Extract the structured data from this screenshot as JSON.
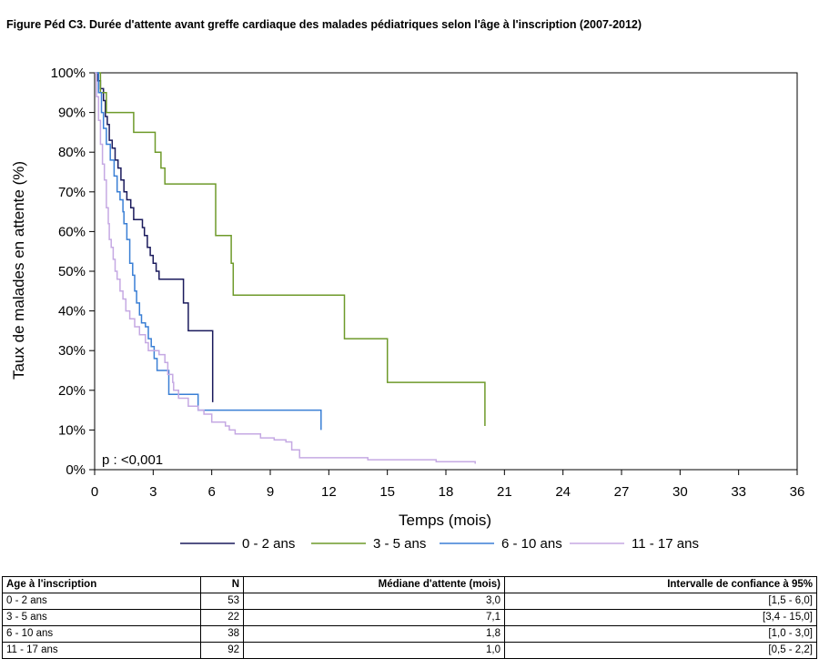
{
  "figure": {
    "title": "Figure Péd C3. Durée d'attente avant greffe cardiaque des malades pédiatriques selon l'âge à l'inscription (2007-2012)"
  },
  "chart_data": {
    "type": "line",
    "line_shape": "step",
    "xlabel": "Temps (mois)",
    "ylabel": "Taux de malades en attente (%)",
    "xlim": [
      0,
      36
    ],
    "ylim": [
      0,
      100
    ],
    "x_ticks": [
      0,
      3,
      6,
      9,
      12,
      15,
      18,
      21,
      24,
      27,
      30,
      33,
      36
    ],
    "y_ticks": [
      0,
      10,
      20,
      30,
      40,
      50,
      60,
      70,
      80,
      90,
      100
    ],
    "y_tick_suffix": "%",
    "grid": false,
    "legend_position": "bottom",
    "annotation": "p : <0,001",
    "series": [
      {
        "name": "0 - 2 ans",
        "color": "#1a1a5c",
        "points": [
          [
            0,
            100
          ],
          [
            0.15,
            98
          ],
          [
            0.3,
            96
          ],
          [
            0.45,
            93
          ],
          [
            0.55,
            89
          ],
          [
            0.65,
            87
          ],
          [
            0.75,
            83
          ],
          [
            0.9,
            81
          ],
          [
            1.05,
            78
          ],
          [
            1.2,
            76
          ],
          [
            1.35,
            73
          ],
          [
            1.5,
            70
          ],
          [
            1.65,
            68
          ],
          [
            1.85,
            66
          ],
          [
            2.0,
            63
          ],
          [
            2.3,
            63
          ],
          [
            2.45,
            61
          ],
          [
            2.55,
            59
          ],
          [
            2.7,
            56
          ],
          [
            2.85,
            54
          ],
          [
            3.0,
            52
          ],
          [
            3.15,
            50
          ],
          [
            3.3,
            48
          ],
          [
            4.5,
            48
          ],
          [
            4.55,
            42
          ],
          [
            4.7,
            42
          ],
          [
            4.8,
            35
          ],
          [
            6.0,
            35
          ],
          [
            6.05,
            17
          ]
        ]
      },
      {
        "name": "3 - 5 ans",
        "color": "#6e9a2a",
        "points": [
          [
            0,
            100
          ],
          [
            0.3,
            95
          ],
          [
            0.6,
            90
          ],
          [
            1.6,
            90
          ],
          [
            2.0,
            85
          ],
          [
            2.8,
            85
          ],
          [
            3.1,
            80
          ],
          [
            3.4,
            76
          ],
          [
            3.6,
            72
          ],
          [
            4.2,
            72
          ],
          [
            6.2,
            59
          ],
          [
            6.6,
            59
          ],
          [
            7.0,
            52
          ],
          [
            7.1,
            44
          ],
          [
            8.6,
            44
          ],
          [
            12.8,
            33
          ],
          [
            15.0,
            22
          ],
          [
            20.0,
            11
          ]
        ]
      },
      {
        "name": "6 - 10 ans",
        "color": "#3a7fd5",
        "points": [
          [
            0,
            100
          ],
          [
            0.2,
            95
          ],
          [
            0.35,
            90
          ],
          [
            0.45,
            86
          ],
          [
            0.6,
            82
          ],
          [
            0.8,
            78
          ],
          [
            1.0,
            74
          ],
          [
            1.15,
            70
          ],
          [
            1.3,
            68
          ],
          [
            1.45,
            65
          ],
          [
            1.5,
            62
          ],
          [
            1.65,
            58
          ],
          [
            1.8,
            52
          ],
          [
            1.95,
            49
          ],
          [
            2.05,
            45
          ],
          [
            2.15,
            42
          ],
          [
            2.3,
            39
          ],
          [
            2.4,
            37
          ],
          [
            2.6,
            36
          ],
          [
            2.75,
            33
          ],
          [
            2.9,
            31
          ],
          [
            3.05,
            28
          ],
          [
            3.2,
            25
          ],
          [
            3.8,
            19
          ],
          [
            5.3,
            15
          ],
          [
            7.1,
            15
          ],
          [
            11.6,
            10
          ]
        ]
      },
      {
        "name": "11 - 17 ans",
        "color": "#c5a9e3",
        "points": [
          [
            0,
            100
          ],
          [
            0.1,
            94
          ],
          [
            0.2,
            88
          ],
          [
            0.3,
            82
          ],
          [
            0.4,
            77
          ],
          [
            0.5,
            73
          ],
          [
            0.6,
            66
          ],
          [
            0.7,
            62
          ],
          [
            0.75,
            58
          ],
          [
            0.85,
            56
          ],
          [
            0.95,
            53
          ],
          [
            1.05,
            50
          ],
          [
            1.15,
            48
          ],
          [
            1.3,
            45
          ],
          [
            1.45,
            43
          ],
          [
            1.6,
            40
          ],
          [
            1.8,
            38
          ],
          [
            2.05,
            36
          ],
          [
            2.3,
            34
          ],
          [
            2.6,
            32
          ],
          [
            2.75,
            30
          ],
          [
            3.3,
            29
          ],
          [
            3.6,
            27
          ],
          [
            3.75,
            24
          ],
          [
            4.0,
            22
          ],
          [
            4.05,
            20
          ],
          [
            4.3,
            18
          ],
          [
            4.8,
            16
          ],
          [
            5.3,
            15
          ],
          [
            5.6,
            14
          ],
          [
            6.0,
            12
          ],
          [
            6.7,
            11
          ],
          [
            6.9,
            10
          ],
          [
            7.2,
            9
          ],
          [
            8.5,
            8
          ],
          [
            9.2,
            7.5
          ],
          [
            9.8,
            7
          ],
          [
            10.1,
            5
          ],
          [
            10.5,
            3
          ],
          [
            11.8,
            3
          ],
          [
            14.0,
            2.5
          ],
          [
            17.5,
            2
          ],
          [
            19.5,
            1.5
          ]
        ]
      }
    ]
  },
  "table": {
    "headers": [
      "Age à l'inscription",
      "N",
      "Médiane d'attente (mois)",
      "Intervalle de confiance à 95%"
    ],
    "rows": [
      [
        "0 - 2 ans",
        "53",
        "3,0",
        "[1,5 - 6,0]"
      ],
      [
        "3 - 5 ans",
        "22",
        "7,1",
        "[3,4 - 15,0]"
      ],
      [
        "6 - 10 ans",
        "38",
        "1,8",
        "[1,0 - 3,0]"
      ],
      [
        "11 - 17 ans",
        "92",
        "1,0",
        "[0,5 - 2,2]"
      ]
    ]
  }
}
